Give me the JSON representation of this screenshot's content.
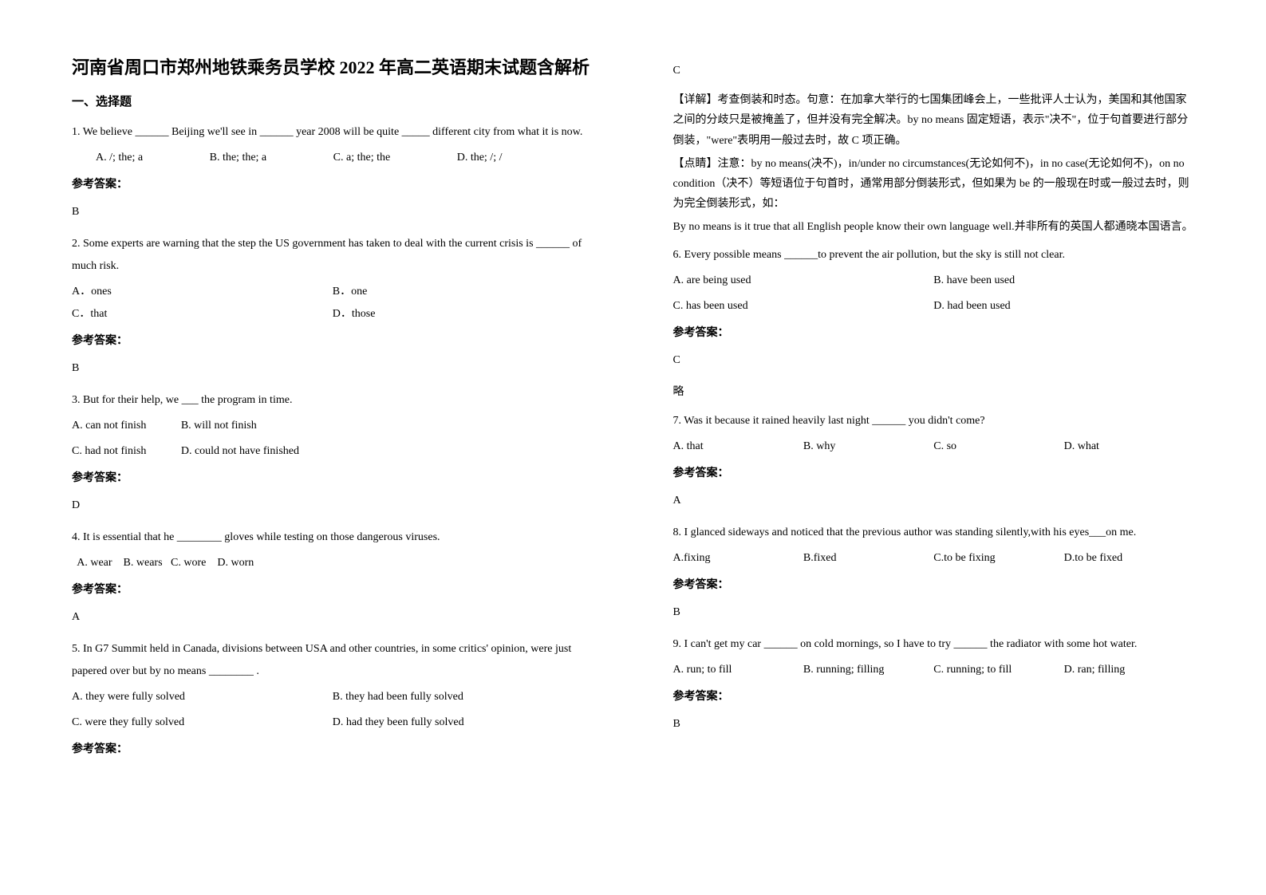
{
  "title": "河南省周口市郑州地铁乘务员学校 2022 年高二英语期末试题含解析",
  "section1": "一、选择题",
  "answer_label": "参考答案：",
  "lue": "略",
  "q1": {
    "text": "1. We believe ______ Beijing we'll see in ______ year 2008 will be quite _____ different city from what it is now.",
    "a": "A. /; the; a",
    "b": "B. the; the; a",
    "c": "C. a; the; the",
    "d": "D. the; /; /",
    "ans": "B"
  },
  "q2": {
    "text": "2. Some experts are warning that the step the US government has taken to deal with the current crisis is ______ of much risk.",
    "a": "A．ones",
    "b": "B．one",
    "c": "C．that",
    "d": "D．those",
    "ans": "B"
  },
  "q3": {
    "text": "3. But for their help, we ___ the program in time.",
    "a": "A. can not finish",
    "b": "B. will not finish",
    "c": "C. had not finish",
    "d": "D. could not have finished",
    "ans": "D"
  },
  "q4": {
    "text": "4. It is essential that he ________ gloves while testing on those dangerous viruses.",
    "opts": "  A. wear    B. wears   C. wore    D. worn",
    "ans": "A"
  },
  "q5": {
    "text": "5. In G7 Summit held in Canada, divisions between USA and other countries, in some critics' opinion, were just papered over but by no means ________ .",
    "a": "A. they were fully solved",
    "b": "B. they had been fully solved",
    "c": "C. were they fully solved",
    "d": "D. had they been fully solved",
    "ans": "C"
  },
  "explain5": {
    "p1": "【详解】考查倒装和时态。句意：在加拿大举行的七国集团峰会上，一些批评人士认为，美国和其他国家之间的分歧只是被掩盖了，但并没有完全解决。by no means 固定短语，表示\"决不\"，位于句首要进行部分倒装，\"were\"表明用一般过去时，故 C 项正确。",
    "p2": "【点睛】注意：by no means(决不)，in/under no circumstances(无论如何不)，in no case(无论如何不)，on no condition（决不）等短语位于句首时，通常用部分倒装形式，但如果为 be 的一般现在时或一般过去时，则为完全倒装形式，如：",
    "p3": "By no means is it true that all English people know their own language well.并非所有的英国人都通晓本国语言。"
  },
  "q6": {
    "text": "6. Every possible means ______to prevent the air pollution, but the sky is still not clear.",
    "a": "A. are being used",
    "b": "B. have been used",
    "c": "C. has been used",
    "d": "D. had been used",
    "ans": "C"
  },
  "q7": {
    "text": "7. Was it because it rained heavily last night ______ you didn't come?",
    "a": "A. that",
    "b": "B. why",
    "c": "C. so",
    "d": "D. what",
    "ans": "A"
  },
  "q8": {
    "text": "8. I glanced sideways and noticed that the previous author was standing silently,with his eyes___on me.",
    "a": "A.fixing",
    "b": "B.fixed",
    "c": "C.to be fixing",
    "d": "D.to be fixed",
    "ans": "B"
  },
  "q9": {
    "text": "9.  I can't get my car ______ on cold mornings, so I have to try ______ the radiator with some hot water.",
    "a": "A. run; to fill",
    "b": "B. running; filling",
    "c": "C. running; to fill",
    "d": "D. ran; filling",
    "ans": "B"
  }
}
